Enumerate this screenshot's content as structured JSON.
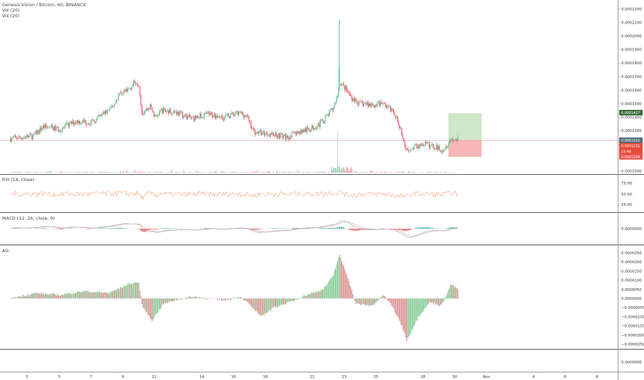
{
  "header": {
    "symbol_line": "Genesis Vision / Bitcoin, 60, BINANCE",
    "vol_line_1": "Vol (20)",
    "vol_line_2": "Vol (20)"
  },
  "colors": {
    "up": "#53b987",
    "down": "#eb4d5c",
    "rsi": "#f7a57f",
    "macd": "#9aa0a6",
    "signal": "#c8a0a0",
    "target_zone": "#cfe6c8",
    "stop_zone": "#f7b6b6"
  },
  "price_axis": {
    "ticks": [
      "0.0002200",
      "0.0002100",
      "0.0002000",
      "0.0001900",
      "0.0001800",
      "0.0001700",
      "0.0001600",
      "0.0001500",
      "0.0001400",
      "0.0001300",
      "0.0001000"
    ],
    "ticks_values": [
      0.00022,
      0.00021,
      0.0002,
      0.00019,
      0.00018,
      0.00017,
      0.00016,
      0.00015,
      0.00014,
      0.00013,
      0.0001
    ],
    "badges": [
      {
        "label": "0.0001427",
        "color": "#3d6e3a"
      },
      {
        "label": "0.0001232",
        "color": "#546e7a"
      },
      {
        "label": "0.0001231",
        "color": "#e74c3c"
      },
      {
        "label": "15:49",
        "color": "#e74c3c"
      },
      {
        "label": "0.0001108",
        "color": "#ef5350"
      }
    ]
  },
  "rsi_pane": {
    "title": "RSI (14, close)",
    "ticks": [
      "75.00",
      "50.00",
      "25.00"
    ]
  },
  "macd_pane": {
    "title": "MACD (12, 26, close, 9)",
    "ticks": [
      "0.0000000"
    ]
  },
  "ao_pane": {
    "title": "AO",
    "ticks": [
      "0.0000250",
      "0.0000200",
      "0.0000150",
      "0.0000100",
      "0.0000050",
      "0.0000000",
      "−0.0000050",
      "−0.0000100",
      "−0.0000150",
      "−0.0000200",
      "−0.0000250"
    ]
  },
  "bottom_pane": {
    "ticks": [
      "0.0000000"
    ]
  },
  "time_axis": {
    "labels": [
      "3",
      "5",
      "7",
      "9",
      "11",
      "14",
      "16",
      "18",
      "21",
      "23",
      "25",
      "28",
      "30",
      "Nov",
      "4",
      "6",
      "8"
    ]
  },
  "chart_data": {
    "type": "candlestick",
    "title": "Genesis Vision / Bitcoin, 60, BINANCE",
    "x_axis": [
      "3",
      "5",
      "7",
      "9",
      "11",
      "14",
      "16",
      "18",
      "21",
      "23",
      "25",
      "28",
      "30",
      "Nov",
      "4",
      "6",
      "8"
    ],
    "price_key_points": [
      {
        "date": "3",
        "price": 0.000124
      },
      {
        "date": "5",
        "price": 0.000133
      },
      {
        "date": "7",
        "price": 0.00014
      },
      {
        "date": "9",
        "price": 0.00016
      },
      {
        "date": "9",
        "price": 0.000166
      },
      {
        "date": "10",
        "price": 0.000145
      },
      {
        "date": "11",
        "price": 0.00014
      },
      {
        "date": "14",
        "price": 0.00014
      },
      {
        "date": "16",
        "price": 0.000143
      },
      {
        "date": "18",
        "price": 0.000127
      },
      {
        "date": "20",
        "price": 0.00013
      },
      {
        "date": "21",
        "price": 0.00014
      },
      {
        "date": "22",
        "price": 0.000212
      },
      {
        "date": "22",
        "price": 0.000165
      },
      {
        "date": "23",
        "price": 0.00015
      },
      {
        "date": "25",
        "price": 0.000148
      },
      {
        "date": "26",
        "price": 0.000115
      },
      {
        "date": "28",
        "price": 0.000118
      },
      {
        "date": "29",
        "price": 0.000123
      }
    ],
    "current_price": 0.0001232,
    "last_price": 0.0001231,
    "target_price": 0.0001427,
    "stop_price": 0.0001108,
    "rsi_ylim": [
      0,
      100
    ],
    "ao_ylim": [
      -2.5e-05,
      2.5e-05
    ]
  }
}
